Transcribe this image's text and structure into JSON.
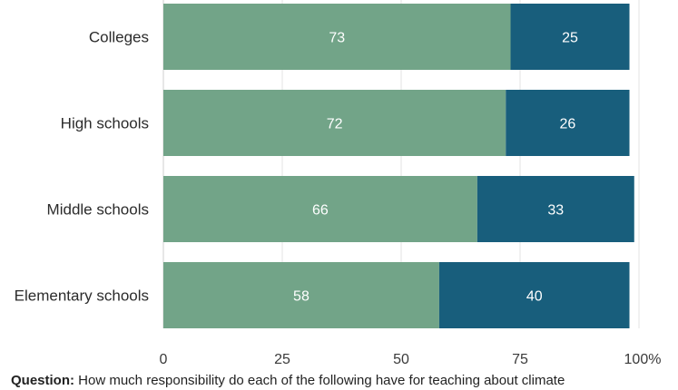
{
  "chart_data": {
    "type": "bar",
    "orientation": "horizontal",
    "stacked": true,
    "categories": [
      "Colleges",
      "High schools",
      "Middle schools",
      "Elementary schools"
    ],
    "series": [
      {
        "values": [
          73,
          72,
          66,
          58
        ],
        "color": "#72a488"
      },
      {
        "values": [
          25,
          26,
          33,
          40
        ],
        "color": "#185e7c"
      }
    ],
    "xlim": [
      0,
      100
    ],
    "xticks": [
      0,
      25,
      50,
      75,
      100
    ],
    "xtick_labels": [
      "0",
      "25",
      "50",
      "75",
      "100%"
    ],
    "grid": true
  },
  "footer": {
    "question_label": "Question:",
    "question_text": "How much responsibility do each of the following have for teaching about climate"
  }
}
